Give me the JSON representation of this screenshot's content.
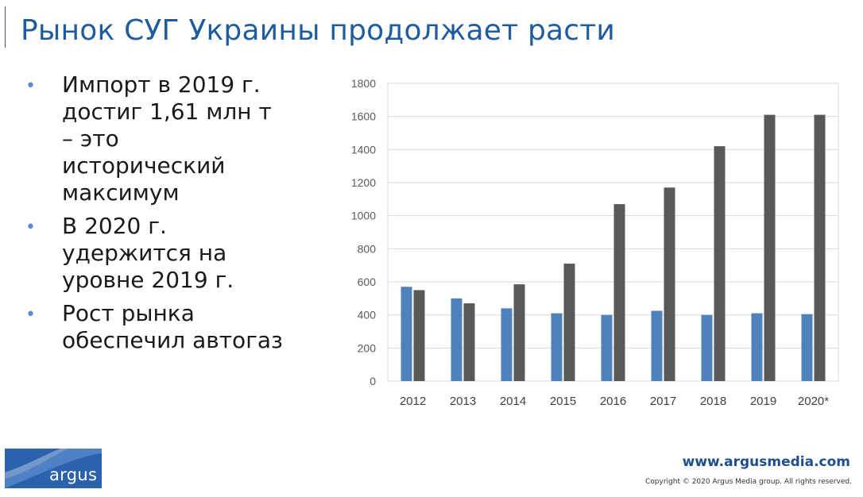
{
  "slide": {
    "title": "Рынок СУГ Украины продолжает расти",
    "bullets": [
      {
        "text": "Импорт в 2019 г.\nдостиг 1,61 млн т\n– это\nисторический\nмаксимум"
      },
      {
        "text": "В 2020 г.\nудержится на\nуровне 2019 г."
      },
      {
        "text": "Рост рынка\nобеспечил автогаз"
      }
    ],
    "bullet_glyph": "•",
    "logo_text": "argus",
    "footer_url": "www.argusmedia.com",
    "footer_copyright": "Copyright © 2020 Argus Media group. All rights reserved."
  },
  "colors": {
    "title": "#1f5c9e",
    "series_a": "#4f81bd",
    "series_b": "#595959",
    "grid": "#d9d9d9",
    "axis_text": "#595959",
    "logo_bg": "#2a62ae"
  },
  "chart_data": {
    "type": "bar",
    "categories": [
      "2012",
      "2013",
      "2014",
      "2015",
      "2016",
      "2017",
      "2018",
      "2019",
      "2020*"
    ],
    "series": [
      {
        "values": [
          570,
          500,
          440,
          410,
          400,
          425,
          400,
          410,
          405
        ]
      },
      {
        "values": [
          550,
          470,
          585,
          710,
          1070,
          1170,
          1420,
          1610,
          1610
        ]
      }
    ],
    "ylim": [
      0,
      1800
    ],
    "yticks": [
      "0",
      "200",
      "400",
      "600",
      "800",
      "1000",
      "1200",
      "1400",
      "1600",
      "1800"
    ],
    "grid": true,
    "legend": "none",
    "title": "",
    "xlabel": "",
    "ylabel": ""
  }
}
